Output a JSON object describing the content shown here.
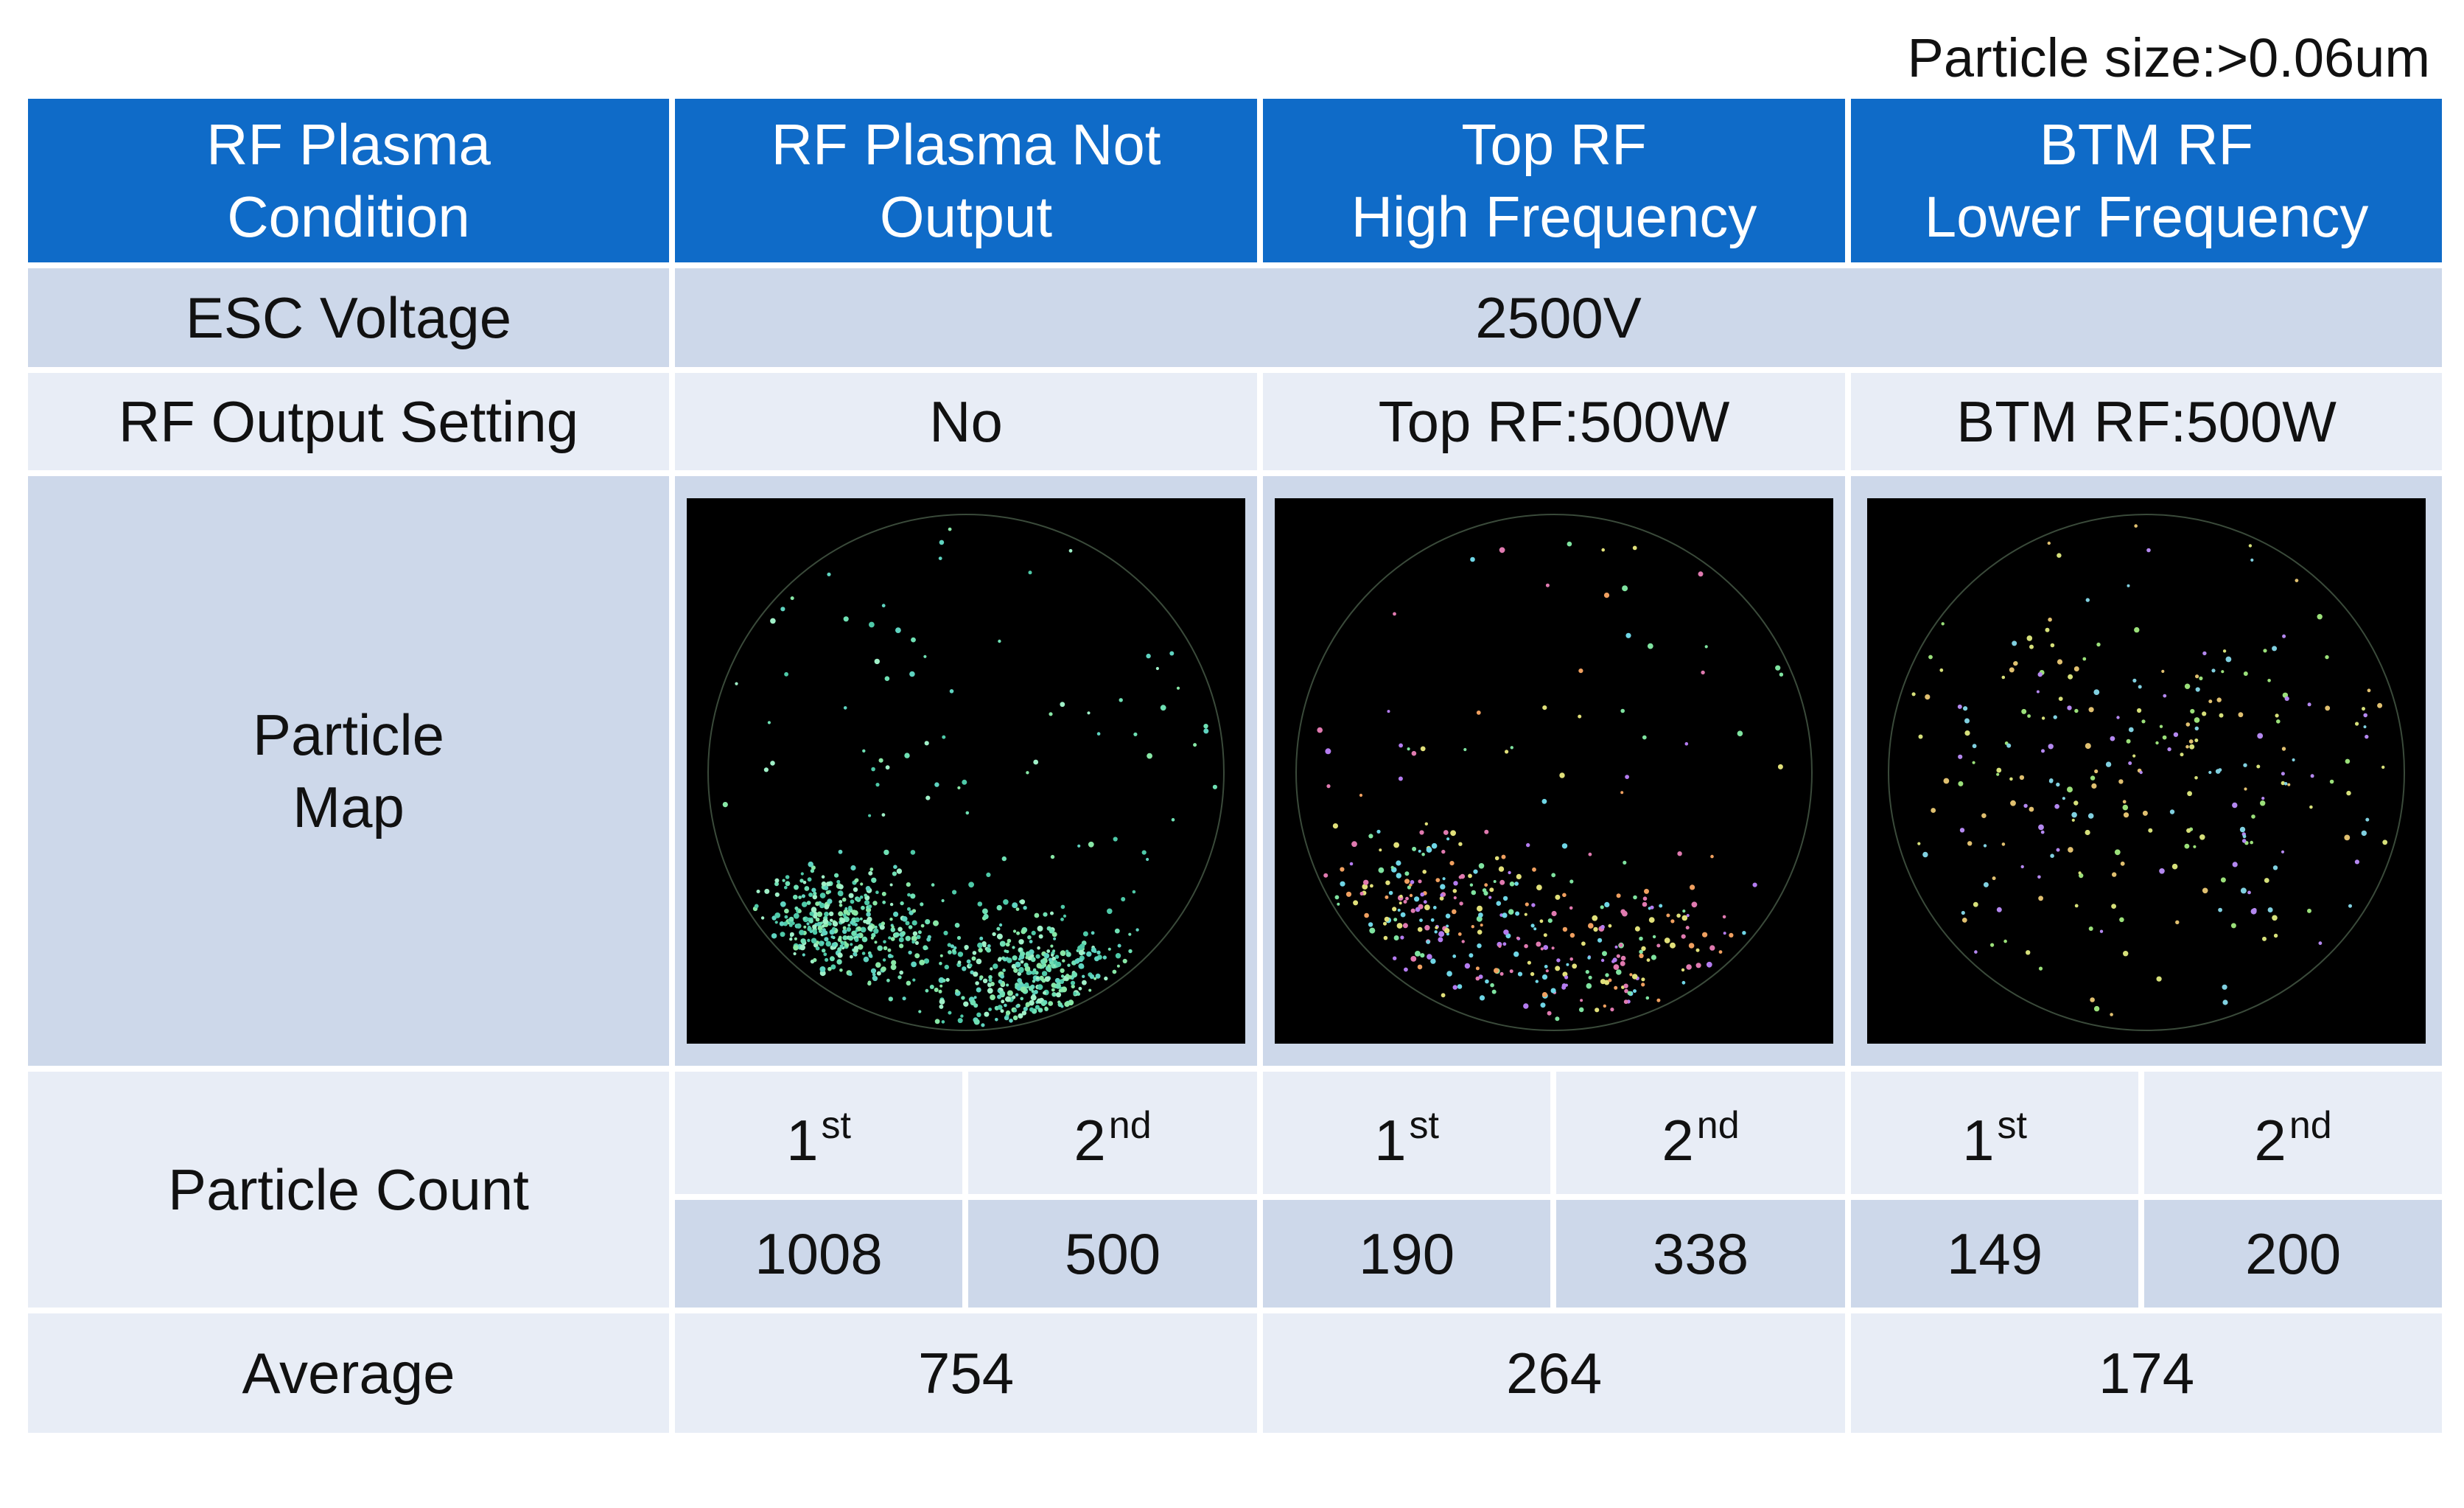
{
  "note": "Particle size:>0.06um",
  "header": {
    "label": "RF Plasma\nCondition",
    "cols": [
      "RF Plasma Not\nOutput",
      "Top RF\nHigh Frequency",
      "BTM RF\nLower Frequency"
    ]
  },
  "esc": {
    "label": "ESC Voltage",
    "value": "2500V"
  },
  "rf_setting": {
    "label": "RF Output Setting",
    "values": [
      "No",
      "Top RF:500W",
      "BTM RF:500W"
    ]
  },
  "particle_map": {
    "label": "Particle\nMap",
    "maps": [
      {
        "name": "no-rf",
        "caption": "",
        "density": "high"
      },
      {
        "name": "top-rf",
        "caption": "",
        "density": "medium"
      },
      {
        "name": "btm-rf",
        "caption": "",
        "density": "low"
      }
    ]
  },
  "particle_count": {
    "label": "Particle Count",
    "ordinals": [
      {
        "n": "1",
        "suf": "st"
      },
      {
        "n": "2",
        "suf": "nd"
      },
      {
        "n": "1",
        "suf": "st"
      },
      {
        "n": "2",
        "suf": "nd"
      },
      {
        "n": "1",
        "suf": "st"
      },
      {
        "n": "2",
        "suf": "nd"
      }
    ],
    "values": [
      "1008",
      "500",
      "190",
      "338",
      "149",
      "200"
    ]
  },
  "average": {
    "label": "Average",
    "values": [
      "754",
      "264",
      "174"
    ]
  },
  "colors": {
    "header_bg": "#0f6bc8",
    "row_light": "#e8edf6",
    "row_dark": "#cdd8ea"
  }
}
